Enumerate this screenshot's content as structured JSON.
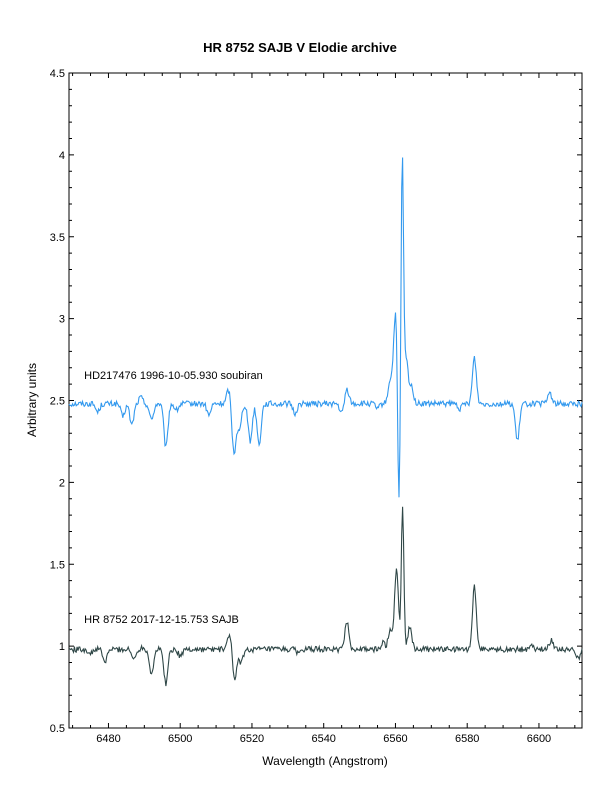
{
  "chart_data": {
    "type": "line",
    "title": "HR 8752   SAJB V Elodie archive",
    "xlabel": "Wavelength (Angstrom)",
    "ylabel": "Arbitrary units",
    "xlim": [
      6469,
      6612
    ],
    "ylim": [
      0.5,
      4.5
    ],
    "x_ticks": [
      6480,
      6500,
      6520,
      6540,
      6560,
      6580,
      6600
    ],
    "y_ticks": [
      0.5,
      1,
      1.5,
      2,
      2.5,
      3,
      3.5,
      4,
      4.5
    ],
    "y_tick_labels": [
      "0.5",
      "1",
      "1.5",
      "2",
      "2.5",
      "3",
      "3.5",
      "4",
      "4.5"
    ],
    "grid": false,
    "series": [
      {
        "name": "HD217476  1996-10-05.930  soubiran",
        "color": "#3399ee",
        "baseline": 2.48,
        "features": [
          {
            "x": 6477.0,
            "y": 2.43
          },
          {
            "x": 6484.0,
            "y": 2.4
          },
          {
            "x": 6486.5,
            "y": 2.35
          },
          {
            "x": 6489.0,
            "y": 2.52
          },
          {
            "x": 6492.0,
            "y": 2.38
          },
          {
            "x": 6496.0,
            "y": 2.21
          },
          {
            "x": 6499.0,
            "y": 2.44
          },
          {
            "x": 6508.0,
            "y": 2.41
          },
          {
            "x": 6513.5,
            "y": 2.57
          },
          {
            "x": 6515.0,
            "y": 2.18
          },
          {
            "x": 6516.5,
            "y": 2.32
          },
          {
            "x": 6519.5,
            "y": 2.25
          },
          {
            "x": 6522.0,
            "y": 2.23
          },
          {
            "x": 6532.0,
            "y": 2.42
          },
          {
            "x": 6545.0,
            "y": 2.42
          },
          {
            "x": 6546.5,
            "y": 2.57
          },
          {
            "x": 6555.0,
            "y": 2.45
          },
          {
            "x": 6558.5,
            "y": 2.62
          },
          {
            "x": 6560.0,
            "y": 3.03
          },
          {
            "x": 6561.0,
            "y": 1.74
          },
          {
            "x": 6561.9,
            "y": 3.99
          },
          {
            "x": 6563.0,
            "y": 2.75
          },
          {
            "x": 6564.5,
            "y": 2.58
          },
          {
            "x": 6578.0,
            "y": 2.45
          },
          {
            "x": 6582.0,
            "y": 2.76
          },
          {
            "x": 6594.0,
            "y": 2.25
          },
          {
            "x": 6603.0,
            "y": 2.55
          }
        ]
      },
      {
        "name": "HR 8752  2017-12-15.753  SAJB",
        "color": "#2f4747",
        "baseline": 0.98,
        "features": [
          {
            "x": 6475.0,
            "y": 0.95
          },
          {
            "x": 6479.0,
            "y": 0.9
          },
          {
            "x": 6487.0,
            "y": 0.92
          },
          {
            "x": 6489.5,
            "y": 0.99
          },
          {
            "x": 6492.0,
            "y": 0.83
          },
          {
            "x": 6496.0,
            "y": 0.77
          },
          {
            "x": 6500.0,
            "y": 0.94
          },
          {
            "x": 6513.8,
            "y": 1.08
          },
          {
            "x": 6515.2,
            "y": 0.78
          },
          {
            "x": 6517.0,
            "y": 0.9
          },
          {
            "x": 6533.0,
            "y": 0.96
          },
          {
            "x": 6546.5,
            "y": 1.15
          },
          {
            "x": 6556.5,
            "y": 1.02
          },
          {
            "x": 6558.5,
            "y": 1.1
          },
          {
            "x": 6560.3,
            "y": 1.49
          },
          {
            "x": 6561.1,
            "y": 0.97
          },
          {
            "x": 6562.0,
            "y": 1.86
          },
          {
            "x": 6564.0,
            "y": 1.12
          },
          {
            "x": 6582.0,
            "y": 1.36
          },
          {
            "x": 6585.0,
            "y": 0.99
          },
          {
            "x": 6598.0,
            "y": 1.01
          },
          {
            "x": 6603.5,
            "y": 1.04
          },
          {
            "x": 6611.0,
            "y": 0.93
          }
        ]
      }
    ],
    "annotations": [
      {
        "text": "HD217476  1996-10-05.930  soubiran",
        "x": 6471,
        "y": 2.63
      },
      {
        "text": "HR 8752  2017-12-15.753  SAJB",
        "x": 6471,
        "y": 1.14
      }
    ]
  }
}
